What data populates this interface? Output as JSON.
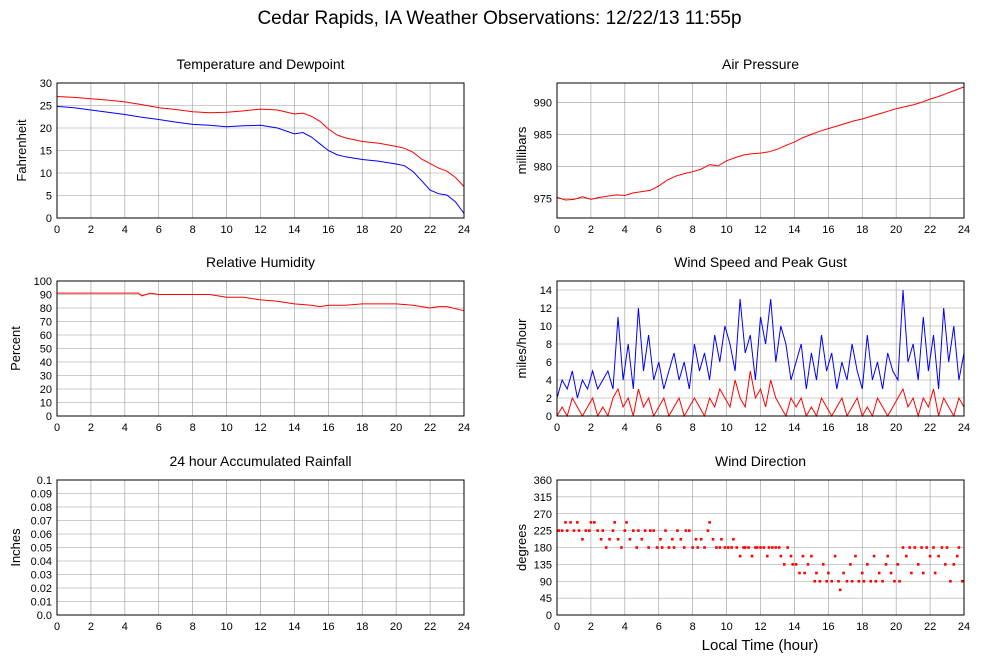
{
  "page": {
    "title": "Cedar Rapids, IA Weather Observations: 12/22/13 11:55p"
  },
  "x_axis": {
    "ticks": [
      0,
      2,
      4,
      6,
      8,
      10,
      12,
      14,
      16,
      18,
      20,
      22,
      24
    ],
    "label": "Local Time (hour)"
  },
  "colors": {
    "red": "#ff0000",
    "blue": "#0000ff",
    "grid": "#999999"
  },
  "chart_data": [
    {
      "id": "temp",
      "type": "line",
      "title": "Temperature and Dewpoint",
      "ylabel": "Fahrenheit",
      "xlim": [
        0,
        24
      ],
      "ylim": [
        0,
        30
      ],
      "yticks": [
        "0",
        "5",
        "10",
        "15",
        "20",
        "25",
        "30"
      ],
      "grid": true,
      "series": [
        {
          "color": "#ff0000",
          "x": [
            0,
            1,
            2,
            3,
            4,
            5,
            6,
            7,
            8,
            9,
            10,
            11,
            12,
            13,
            14,
            14.5,
            15,
            15.5,
            16,
            16.5,
            17,
            18,
            19,
            20,
            20.5,
            21,
            21.5,
            22,
            22.5,
            23,
            23.5,
            24
          ],
          "y": [
            27,
            26.8,
            26.5,
            26.2,
            25.8,
            25.2,
            24.5,
            24.1,
            23.6,
            23.4,
            23.5,
            23.8,
            24.2,
            24.0,
            23.1,
            23.3,
            22.6,
            21.5,
            19.8,
            18.5,
            17.8,
            17.0,
            16.6,
            15.9,
            15.5,
            14.6,
            13.1,
            12.1,
            11.1,
            10.4,
            9.0,
            7.0
          ]
        },
        {
          "color": "#0000ff",
          "x": [
            0,
            1,
            2,
            3,
            4,
            5,
            6,
            7,
            8,
            9,
            10,
            11,
            12,
            13,
            14,
            14.5,
            15,
            15.5,
            16,
            16.5,
            17,
            18,
            19,
            20,
            20.5,
            21,
            21.5,
            22,
            22.5,
            23,
            23.5,
            24
          ],
          "y": [
            24.8,
            24.5,
            24.0,
            23.5,
            23.0,
            22.4,
            21.9,
            21.3,
            20.8,
            20.6,
            20.3,
            20.5,
            20.6,
            20.0,
            18.7,
            19.0,
            18.0,
            16.5,
            15.0,
            14.1,
            13.6,
            13.0,
            12.6,
            12.0,
            11.6,
            10.3,
            8.3,
            6.2,
            5.4,
            5.1,
            3.6,
            1.0
          ]
        }
      ]
    },
    {
      "id": "pressure",
      "type": "line",
      "title": "Air Pressure",
      "ylabel": "millibars",
      "xlim": [
        0,
        24
      ],
      "ylim": [
        972,
        993
      ],
      "yticks": [
        "975",
        "980",
        "985",
        "990"
      ],
      "ytick_values": [
        975,
        980,
        985,
        990
      ],
      "grid": true,
      "series": [
        {
          "color": "#ff0000",
          "x": [
            0,
            0.5,
            1,
            1.5,
            2,
            2.5,
            3,
            3.5,
            4,
            4.5,
            5,
            5.5,
            6,
            6.5,
            7,
            7.5,
            8,
            8.5,
            9,
            9.5,
            10,
            10.5,
            11,
            11.5,
            12,
            12.5,
            13,
            13.5,
            14,
            14.5,
            15,
            15.5,
            16,
            16.5,
            17,
            17.5,
            18,
            18.5,
            19,
            19.5,
            20,
            20.5,
            21,
            21.5,
            22,
            22.5,
            23,
            23.5,
            24
          ],
          "y": [
            975.2,
            974.8,
            974.9,
            975.3,
            974.9,
            975.2,
            975.4,
            975.6,
            975.5,
            975.9,
            976.1,
            976.3,
            977.0,
            977.9,
            978.5,
            978.9,
            979.2,
            979.6,
            980.3,
            980.1,
            980.9,
            981.4,
            981.8,
            982.0,
            982.1,
            982.3,
            982.7,
            983.3,
            983.8,
            984.5,
            985.0,
            985.5,
            985.9,
            986.3,
            986.7,
            987.1,
            987.4,
            987.8,
            988.2,
            988.6,
            989.0,
            989.3,
            989.6,
            990.0,
            990.5,
            990.9,
            991.4,
            991.9,
            992.4
          ]
        }
      ]
    },
    {
      "id": "rh",
      "type": "line",
      "title": "Relative Humidity",
      "ylabel": "Percent",
      "xlim": [
        0,
        24
      ],
      "ylim": [
        0,
        100
      ],
      "yticks": [
        "0",
        "10",
        "20",
        "30",
        "40",
        "50",
        "60",
        "70",
        "80",
        "90",
        "100"
      ],
      "grid": true,
      "series": [
        {
          "color": "#ff0000",
          "x": [
            0,
            2,
            4,
            4.8,
            5,
            5.5,
            6,
            7,
            8,
            9,
            9.5,
            10,
            11,
            12,
            13,
            14,
            15,
            15.5,
            16,
            17,
            18,
            19,
            20,
            21,
            22,
            22.5,
            23,
            24
          ],
          "y": [
            91,
            91,
            91,
            91,
            89,
            91,
            90,
            90,
            90,
            90,
            89,
            88,
            88,
            86,
            85,
            83,
            82,
            81,
            82,
            82,
            83,
            83,
            83,
            82,
            80,
            81,
            81,
            78
          ]
        }
      ]
    },
    {
      "id": "wind",
      "type": "line",
      "title": "Wind Speed and Peak Gust",
      "ylabel": "miles/hour",
      "xlim": [
        0,
        24
      ],
      "ylim": [
        0,
        15
      ],
      "yticks": [
        "0",
        "2",
        "4",
        "6",
        "8",
        "10",
        "12",
        "14"
      ],
      "grid": true,
      "series": [
        {
          "color": "#0000ff",
          "x": [
            0,
            0.3,
            0.6,
            0.9,
            1.2,
            1.5,
            1.8,
            2.1,
            2.4,
            2.7,
            3,
            3.3,
            3.6,
            3.9,
            4.2,
            4.5,
            4.8,
            5.1,
            5.4,
            5.7,
            6,
            6.3,
            6.6,
            6.9,
            7.2,
            7.5,
            7.8,
            8.1,
            8.4,
            8.7,
            9,
            9.3,
            9.6,
            9.9,
            10.2,
            10.5,
            10.8,
            11.1,
            11.4,
            11.7,
            12,
            12.3,
            12.6,
            12.9,
            13.2,
            13.5,
            13.8,
            14.1,
            14.4,
            14.7,
            15,
            15.3,
            15.6,
            15.9,
            16.2,
            16.5,
            16.8,
            17.1,
            17.4,
            17.7,
            18,
            18.3,
            18.6,
            18.9,
            19.2,
            19.5,
            19.8,
            20.1,
            20.4,
            20.7,
            21,
            21.3,
            21.6,
            21.9,
            22.2,
            22.5,
            22.8,
            23.1,
            23.4,
            23.7,
            24
          ],
          "y": [
            2,
            4,
            3,
            5,
            2,
            4,
            3,
            5,
            3,
            4,
            5,
            3,
            11,
            4,
            8,
            3,
            12,
            5,
            9,
            4,
            6,
            3,
            5,
            7,
            4,
            6,
            3,
            8,
            5,
            7,
            4,
            9,
            6,
            10,
            8,
            5,
            13,
            7,
            9,
            4,
            11,
            8,
            13,
            6,
            10,
            8,
            4,
            6,
            8,
            3,
            7,
            4,
            9,
            5,
            7,
            3,
            6,
            4,
            8,
            5,
            3,
            9,
            4,
            6,
            3,
            7,
            5,
            4,
            14,
            6,
            8,
            4,
            11,
            5,
            9,
            3,
            12,
            6,
            10,
            4,
            7
          ]
        },
        {
          "color": "#ff0000",
          "x": [
            0,
            0.3,
            0.6,
            0.9,
            1.2,
            1.5,
            1.8,
            2.1,
            2.4,
            2.7,
            3,
            3.3,
            3.6,
            3.9,
            4.2,
            4.5,
            4.8,
            5.1,
            5.4,
            5.7,
            6,
            6.3,
            6.6,
            6.9,
            7.2,
            7.5,
            7.8,
            8.1,
            8.4,
            8.7,
            9,
            9.3,
            9.6,
            9.9,
            10.2,
            10.5,
            10.8,
            11.1,
            11.4,
            11.7,
            12,
            12.3,
            12.6,
            12.9,
            13.2,
            13.5,
            13.8,
            14.1,
            14.4,
            14.7,
            15,
            15.3,
            15.6,
            15.9,
            16.2,
            16.5,
            16.8,
            17.1,
            17.4,
            17.7,
            18,
            18.3,
            18.6,
            18.9,
            19.2,
            19.5,
            19.8,
            20.1,
            20.4,
            20.7,
            21,
            21.3,
            21.6,
            21.9,
            22.2,
            22.5,
            22.8,
            23.1,
            23.4,
            23.7,
            24
          ],
          "y": [
            0,
            1,
            0,
            2,
            1,
            0,
            1,
            2,
            0,
            1,
            0,
            2,
            3,
            1,
            2,
            0,
            3,
            1,
            2,
            0,
            1,
            2,
            0,
            1,
            2,
            0,
            1,
            2,
            1,
            0,
            2,
            1,
            3,
            2,
            1,
            4,
            2,
            1,
            5,
            2,
            3,
            1,
            4,
            2,
            1,
            0,
            2,
            1,
            2,
            0,
            1,
            0,
            2,
            1,
            0,
            1,
            2,
            0,
            1,
            2,
            0,
            1,
            0,
            2,
            1,
            0,
            1,
            2,
            3,
            1,
            2,
            0,
            2,
            1,
            3,
            0,
            2,
            1,
            0,
            2,
            1
          ]
        }
      ]
    },
    {
      "id": "rain",
      "type": "line",
      "title": "24 hour Accumulated Rainfall",
      "ylabel": "Inches",
      "xlim": [
        0,
        24
      ],
      "ylim": [
        0,
        0.1
      ],
      "yticks": [
        "0.0",
        "0.01",
        "0.02",
        "0.03",
        "0.04",
        "0.05",
        "0.06",
        "0.07",
        "0.08",
        "0.09",
        "0.1"
      ],
      "grid": true,
      "series": [
        {
          "color": "#ff0000",
          "x": [
            0,
            24
          ],
          "y": [
            0,
            0
          ]
        }
      ]
    },
    {
      "id": "direction",
      "type": "scatter",
      "title": "Wind Direction",
      "ylabel": "degrees",
      "xlim": [
        0,
        24
      ],
      "ylim": [
        0,
        360
      ],
      "yticks": [
        "0",
        "45",
        "90",
        "135",
        "180",
        "225",
        "270",
        "315",
        "360"
      ],
      "grid": true,
      "series": [
        {
          "color": "#ff0000",
          "x": [
            0.1,
            0.3,
            0.5,
            0.6,
            0.8,
            1.0,
            1.2,
            1.3,
            1.5,
            1.7,
            1.9,
            2.0,
            2.2,
            2.4,
            2.6,
            2.7,
            2.9,
            3.1,
            3.3,
            3.4,
            3.6,
            3.8,
            4.0,
            4.1,
            4.3,
            4.5,
            4.7,
            4.8,
            5.0,
            5.2,
            5.4,
            5.5,
            5.7,
            5.9,
            6.1,
            6.2,
            6.4,
            6.6,
            6.8,
            6.9,
            7.1,
            7.3,
            7.5,
            7.6,
            7.8,
            8.0,
            8.2,
            8.3,
            8.5,
            8.7,
            8.9,
            9.0,
            9.2,
            9.4,
            9.6,
            9.7,
            9.9,
            10.1,
            10.3,
            10.4,
            10.6,
            10.8,
            11.0,
            11.1,
            11.3,
            11.5,
            11.7,
            11.8,
            12.0,
            12.2,
            12.4,
            12.5,
            12.7,
            12.9,
            13.1,
            13.2,
            13.4,
            13.6,
            13.8,
            13.9,
            14.1,
            14.3,
            14.5,
            14.6,
            14.8,
            15.0,
            15.2,
            15.3,
            15.5,
            15.7,
            15.9,
            16.0,
            16.2,
            16.4,
            16.6,
            16.7,
            16.9,
            17.1,
            17.3,
            17.4,
            17.6,
            17.8,
            18.0,
            18.1,
            18.3,
            18.5,
            18.7,
            18.8,
            19.0,
            19.2,
            19.4,
            19.5,
            19.7,
            19.9,
            20.1,
            20.2,
            20.4,
            20.6,
            20.8,
            20.9,
            21.1,
            21.3,
            21.5,
            21.6,
            21.8,
            22.0,
            22.2,
            22.3,
            22.5,
            22.7,
            22.9,
            23.0,
            23.2,
            23.4,
            23.6,
            23.7,
            23.9
          ],
          "y": [
            225,
            225,
            247,
            225,
            247,
            225,
            247,
            225,
            202,
            225,
            225,
            247,
            247,
            225,
            202,
            225,
            180,
            202,
            225,
            247,
            202,
            180,
            225,
            247,
            202,
            225,
            180,
            225,
            202,
            225,
            180,
            225,
            225,
            180,
            202,
            180,
            225,
            180,
            202,
            180,
            225,
            202,
            180,
            225,
            225,
            180,
            202,
            180,
            202,
            180,
            225,
            247,
            202,
            180,
            180,
            202,
            180,
            180,
            180,
            202,
            180,
            157,
            180,
            180,
            180,
            157,
            180,
            180,
            180,
            180,
            157,
            180,
            180,
            180,
            180,
            157,
            135,
            180,
            157,
            135,
            135,
            112,
            157,
            112,
            135,
            157,
            90,
            112,
            90,
            135,
            90,
            112,
            90,
            157,
            90,
            67,
            112,
            90,
            135,
            90,
            157,
            90,
            112,
            90,
            135,
            90,
            157,
            90,
            112,
            90,
            135,
            157,
            112,
            90,
            135,
            90,
            180,
            157,
            180,
            112,
            180,
            135,
            180,
            112,
            180,
            157,
            180,
            112,
            157,
            180,
            135,
            180,
            90,
            135,
            157,
            180,
            90
          ]
        }
      ]
    }
  ]
}
